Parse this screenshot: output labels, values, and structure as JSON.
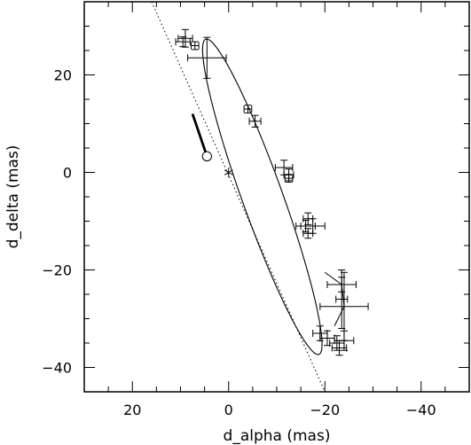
{
  "chart_data": {
    "type": "scatter",
    "title": "",
    "xlabel": "d_alpha (mas)",
    "ylabel": "d_delta (mas)",
    "xlim": [
      30,
      -50
    ],
    "ylim": [
      -45,
      35
    ],
    "x_reversed": true,
    "xticks": [
      20,
      0,
      -20,
      -40
    ],
    "yticks": [
      20,
      0,
      -20,
      -40
    ],
    "grid": false,
    "legend": "none",
    "points": [
      {
        "x": 9.0,
        "y": 27.5,
        "xerr": 1.5,
        "yerr": 1.8
      },
      {
        "x": 9.5,
        "y": 26.8,
        "xerr": 1.5,
        "yerr": 1.0
      },
      {
        "x": 7.0,
        "y": 26.0,
        "xerr": 0.8,
        "yerr": 0.8
      },
      {
        "x": 4.5,
        "y": 23.5,
        "xerr": 4.0,
        "yerr": 4.2
      },
      {
        "x": -4.0,
        "y": 13.0,
        "xerr": 0.8,
        "yerr": 0.8
      },
      {
        "x": -5.5,
        "y": 10.5,
        "xerr": 1.2,
        "yerr": 1.2
      },
      {
        "x": -11.5,
        "y": 1.0,
        "xerr": 1.8,
        "yerr": 1.5
      },
      {
        "x": -12.5,
        "y": -0.5,
        "xerr": 1.0,
        "yerr": 1.2
      },
      {
        "x": -12.5,
        "y": -1.2,
        "xerr": 0.8,
        "yerr": 0.8
      },
      {
        "x": -16.5,
        "y": -9.5,
        "xerr": 1.0,
        "yerr": 1.2
      },
      {
        "x": -16.0,
        "y": -11.0,
        "xerr": 2.0,
        "yerr": 1.2
      },
      {
        "x": -17.5,
        "y": -11.0,
        "xerr": 2.5,
        "yerr": 1.5
      },
      {
        "x": -16.5,
        "y": -12.5,
        "xerr": 1.0,
        "yerr": 1.0
      },
      {
        "x": -23.5,
        "y": -23.0,
        "xerr": 3.0,
        "yerr": 1.5
      },
      {
        "x": -23.5,
        "y": -26.0,
        "xerr": 1.2,
        "yerr": 6.0
      },
      {
        "x": -24.0,
        "y": -27.5,
        "xerr": 5.0,
        "yerr": 7.0
      },
      {
        "x": -19.0,
        "y": -33.0,
        "xerr": 1.5,
        "yerr": 1.5
      },
      {
        "x": -20.5,
        "y": -34.0,
        "xerr": 1.5,
        "yerr": 1.5
      },
      {
        "x": -22.5,
        "y": -35.0,
        "xerr": 1.5,
        "yerr": 1.5
      },
      {
        "x": -24.0,
        "y": -34.5,
        "xerr": 2.0,
        "yerr": 2.0
      },
      {
        "x": -23.0,
        "y": -36.0,
        "xerr": 1.5,
        "yerr": 1.5
      }
    ],
    "ellipse": {
      "center": [
        -7.0,
        -5.0
      ],
      "semi_major": 34.4,
      "semi_minor": 4.2,
      "angle_deg": 70
    },
    "dotted_line": {
      "from": [
        16,
        35
      ],
      "to": [
        -20,
        -45
      ]
    },
    "star_marker": {
      "x": 0,
      "y": 0
    },
    "circle_marker": {
      "x": 4.5,
      "y": 3.3
    },
    "thick_segment": {
      "from": [
        4.5,
        3.3
      ],
      "to": [
        7.5,
        12.0
      ]
    },
    "connector_lines": [
      {
        "from": [
          -22.0,
          -31.5
        ],
        "to": [
          -24.0,
          -27.5
        ]
      },
      {
        "from": [
          -24.0,
          -27.5
        ],
        "to": [
          -23.5,
          -23.0
        ]
      },
      {
        "from": [
          -23.5,
          -23.0
        ],
        "to": [
          -20.0,
          -20.5
        ]
      }
    ]
  }
}
